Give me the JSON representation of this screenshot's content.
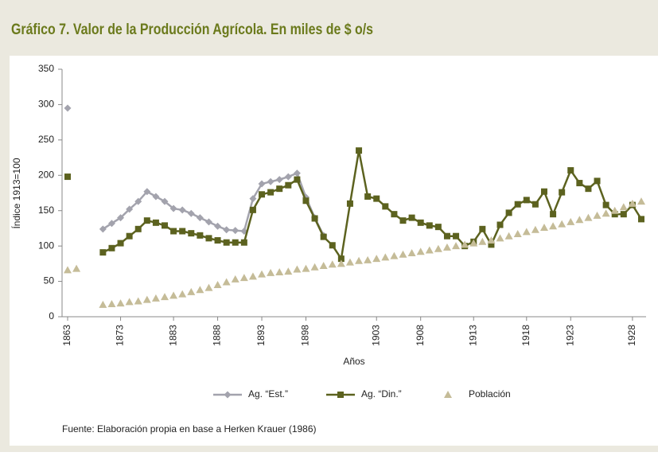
{
  "chart_data": {
    "type": "line",
    "title": "Gráfico 7. Valor de la Producción Agrícola. En miles de $ o/s",
    "x_label": "Años",
    "y_label": "Índice 1913=100",
    "note": "Fuente: Elaboración propia en base a Herken Krauer (1986)",
    "categories": [
      "1863",
      null,
      null,
      null,
      null,
      null,
      "1873",
      null,
      null,
      null,
      null,
      null,
      "1883",
      null,
      null,
      null,
      null,
      "1888",
      null,
      null,
      null,
      null,
      "1893",
      null,
      null,
      null,
      null,
      "1898",
      null,
      null,
      null,
      null,
      null,
      null,
      null,
      "1903",
      null,
      null,
      null,
      null,
      "1908",
      null,
      null,
      null,
      null,
      null,
      "1913",
      null,
      null,
      null,
      null,
      null,
      "1918",
      null,
      null,
      null,
      null,
      "1923",
      null,
      null,
      null,
      null,
      null,
      null,
      "1928",
      null
    ],
    "series": [
      {
        "name": "Ag. “Est.”",
        "color": "#a3a3ad",
        "marker": "diamond",
        "line": true,
        "values": [
          295,
          null,
          null,
          null,
          124,
          132,
          140,
          152,
          163,
          177,
          170,
          163,
          153,
          151,
          146,
          140,
          134,
          128,
          123,
          122,
          121,
          167,
          188,
          191,
          194,
          198,
          203,
          169,
          140,
          115,
          null,
          null,
          null,
          null,
          null,
          null,
          null,
          null,
          null,
          null,
          null,
          null,
          null,
          null,
          null,
          null,
          null,
          null,
          null,
          null,
          null,
          null,
          null,
          null,
          null,
          null,
          null,
          null,
          null,
          null,
          null,
          null,
          null,
          null,
          null,
          null
        ]
      },
      {
        "name": "Ag. “Din.”",
        "color": "#5c621f",
        "marker": "square",
        "line": true,
        "values": [
          198,
          null,
          null,
          null,
          91,
          97,
          104,
          114,
          124,
          136,
          133,
          129,
          121,
          121,
          118,
          115,
          111,
          108,
          105,
          105,
          105,
          151,
          173,
          176,
          181,
          186,
          194,
          164,
          139,
          113,
          101,
          82,
          160,
          235,
          170,
          167,
          156,
          145,
          136,
          140,
          133,
          129,
          127,
          114,
          114,
          100,
          106,
          124,
          102,
          130,
          147,
          159,
          165,
          159,
          177,
          145,
          176,
          207,
          189,
          181,
          192,
          158,
          145,
          145,
          158,
          138
        ]
      },
      {
        "name": "Población",
        "color": "#c5bc98",
        "marker": "triangle",
        "line": false,
        "values": [
          66,
          68,
          null,
          null,
          17,
          18,
          19,
          21,
          22,
          24,
          26,
          28,
          30,
          32,
          35,
          38,
          41,
          45,
          49,
          53,
          55,
          57,
          60,
          62,
          63,
          64,
          67,
          68,
          70,
          72,
          74,
          75,
          77,
          79,
          80,
          82,
          84,
          86,
          88,
          90,
          92,
          94,
          96,
          98,
          100,
          102,
          104,
          106,
          108,
          111,
          114,
          117,
          120,
          123,
          126,
          128,
          131,
          134,
          137,
          140,
          143,
          146,
          150,
          155,
          160,
          163
        ]
      }
    ],
    "ylim": [
      0,
      350
    ],
    "yticks": [
      0,
      50,
      100,
      150,
      200,
      250,
      300,
      350
    ],
    "grid": false,
    "legend": "bottom"
  }
}
